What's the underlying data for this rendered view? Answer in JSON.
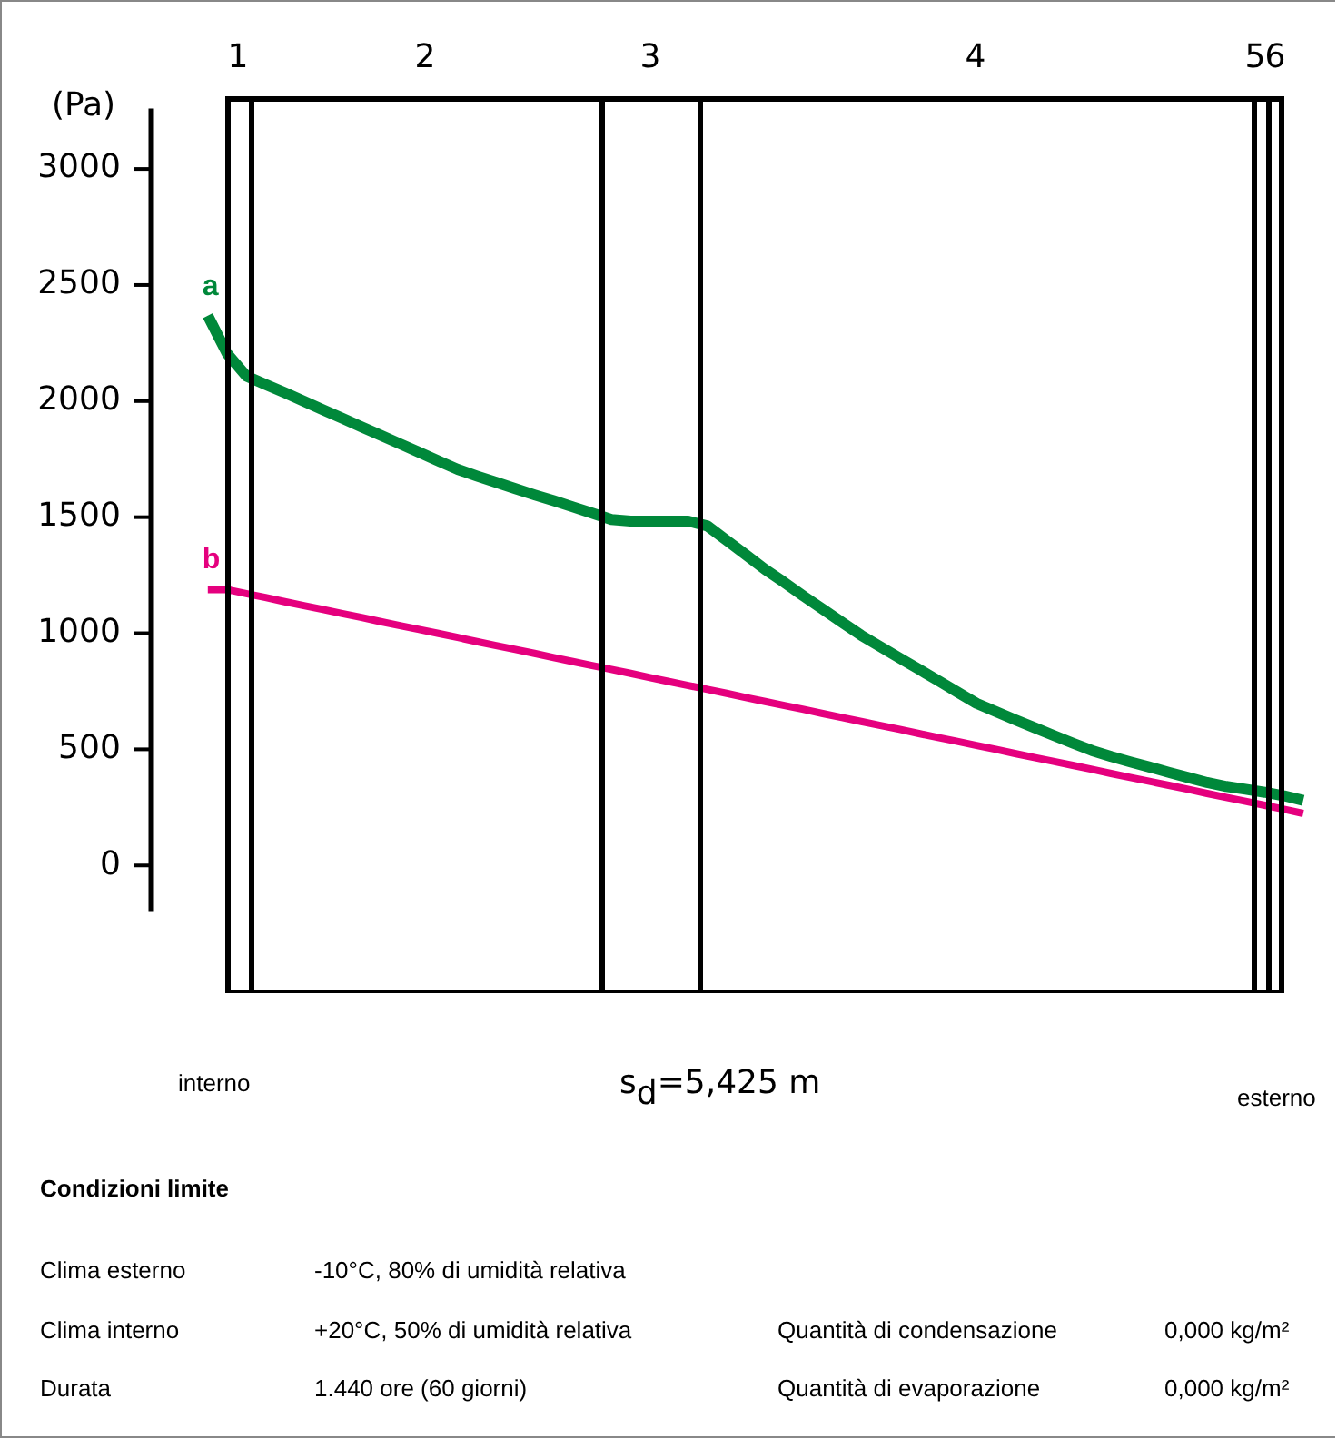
{
  "chart_data": {
    "type": "line",
    "xlabel": "s$_{d}$=5,425 m",
    "ylabel": "(Pa)",
    "categories": [
      null,
      null,
      null,
      null,
      null,
      null,
      null,
      null,
      null,
      null,
      null,
      null,
      null,
      null,
      null,
      null,
      null,
      null,
      null,
      null,
      null,
      null,
      null,
      null,
      null,
      null,
      null,
      null,
      null,
      null,
      null,
      null,
      null,
      null,
      null,
      null,
      null,
      null,
      null,
      null,
      null,
      null,
      null,
      null,
      null,
      null,
      null,
      null,
      null,
      null,
      null,
      null,
      null,
      null,
      null,
      null,
      null,
      null
    ],
    "ylim": [
      -200,
      3260
    ],
    "yticks": [
      0,
      500,
      1000,
      1500,
      2000,
      2500,
      3000
    ],
    "tick_labels": "y",
    "grid": false,
    "legend": "left",
    "marker": "none",
    "line_style": "solid",
    "series": [
      {
        "name": "a",
        "color": "#00883a",
        "values": [
          2368,
          2205,
          2108,
          2072,
          2036,
          1999,
          1962,
          1926,
          1889,
          1853,
          1816,
          1779,
          1742,
          1706,
          1677,
          1650,
          1623,
          1596,
          1571,
          1544,
          1517,
          1490,
          1483,
          1483,
          1483,
          1483,
          1462,
          1400,
          1338,
          1275,
          1219,
          1160,
          1104,
          1047,
          991,
          942,
          893,
          845,
          796,
          747,
          698,
          663,
          628,
          594,
          560,
          527,
          495,
          469,
          446,
          424,
          401,
          379,
          357,
          340,
          328,
          315,
          300,
          280
        ]
      },
      {
        "name": "b",
        "color": "#e5007e",
        "values": [
          1188,
          1188,
          1171,
          1154,
          1136,
          1119,
          1102,
          1085,
          1068,
          1050,
          1033,
          1016,
          999,
          982,
          964,
          947,
          930,
          913,
          895,
          878,
          861,
          844,
          827,
          809,
          792,
          775,
          758,
          741,
          723,
          706,
          689,
          672,
          654,
          637,
          620,
          603,
          586,
          568,
          551,
          534,
          517,
          500,
          482,
          465,
          448,
          431,
          414,
          396,
          379,
          362,
          345,
          328,
          310,
          293,
          276,
          259,
          242,
          224
        ]
      }
    ],
    "annotations": [
      "1",
      "2",
      "3",
      "4",
      "5",
      "6",
      "interno",
      "esterno",
      "Condizioni limite",
      "Clima esterno",
      "-10°C, 80% di umidità relativa",
      "Clima interno",
      "+20°C, 50% di umidità relativa",
      "Quantità di condensazione",
      "0,000 kg/m²",
      "Durata",
      "1.440 ore (60 giorni)",
      "Quantità di evaporazione",
      "0,000 kg/m²"
    ]
  }
}
